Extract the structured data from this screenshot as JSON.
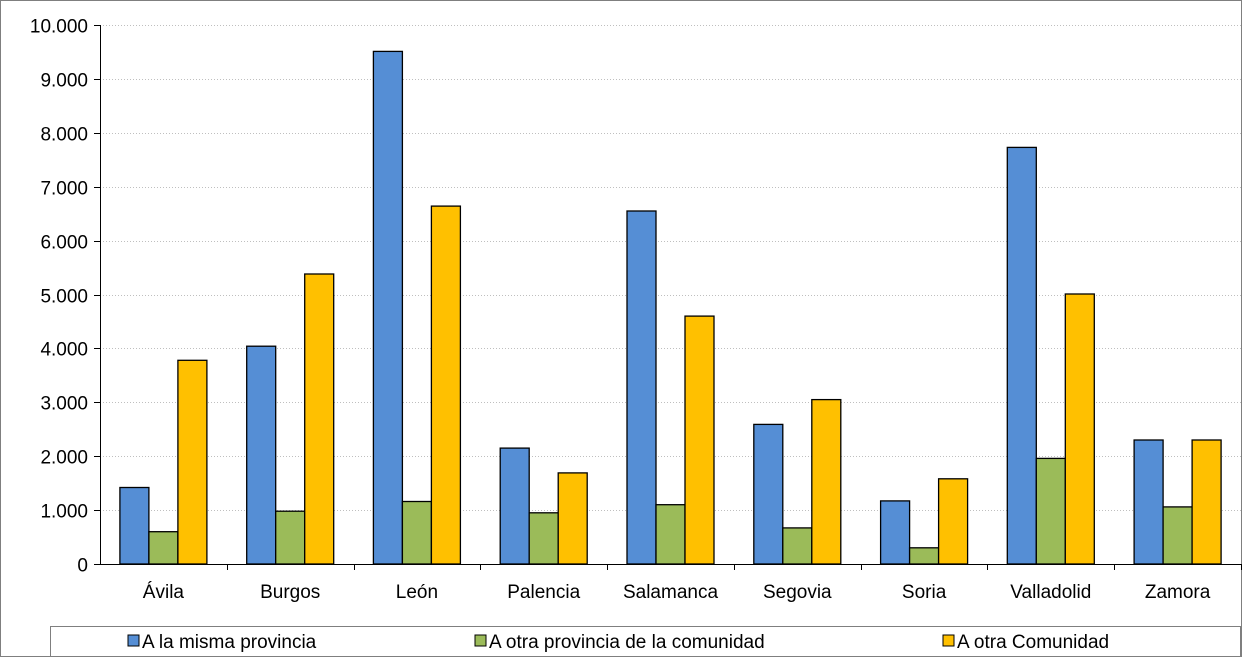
{
  "chart_data": {
    "type": "bar",
    "categories": [
      "Ávila",
      "Burgos",
      "León",
      "Palencia",
      "Salamanca",
      "Segovia",
      "Soria",
      "Valladolid",
      "Zamora"
    ],
    "series": [
      {
        "name": "A la misma provincia",
        "color": "#558ed5",
        "values": [
          1420,
          4040,
          9510,
          2150,
          6550,
          2590,
          1170,
          7730,
          2300
        ]
      },
      {
        "name": "A otra provincia de la comunidad",
        "color": "#9bbb59",
        "values": [
          600,
          980,
          1160,
          950,
          1100,
          670,
          300,
          1960,
          1060
        ]
      },
      {
        "name": "A otra Comunidad",
        "color": "#ffc000",
        "values": [
          3780,
          5380,
          6640,
          1690,
          4600,
          3050,
          1580,
          5010,
          2300
        ]
      }
    ],
    "yticks": [
      "0",
      "1.000",
      "2.000",
      "3.000",
      "4.000",
      "5.000",
      "6.000",
      "7.000",
      "8.000",
      "9.000",
      "10.000"
    ],
    "ylim": [
      0,
      10000
    ],
    "grid": true,
    "legend_position": "bottom"
  }
}
